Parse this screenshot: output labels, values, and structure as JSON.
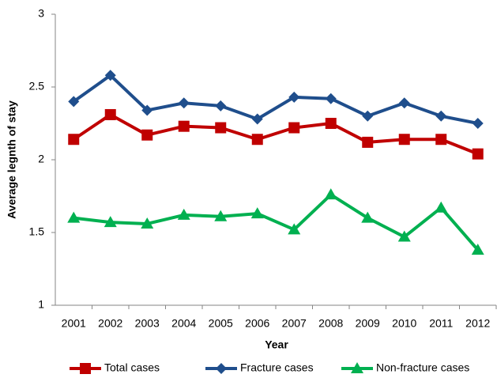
{
  "chart_data": {
    "type": "line",
    "x_label": "Year",
    "y_label": "Average legnth of stay",
    "categories": [
      "2001",
      "2002",
      "2003",
      "2004",
      "2005",
      "2006",
      "2007",
      "2008",
      "2009",
      "2010",
      "2011",
      "2012"
    ],
    "series": [
      {
        "name": "Total cases",
        "color": "#c00000",
        "marker": "square",
        "values": [
          2.14,
          2.31,
          2.17,
          2.23,
          2.22,
          2.14,
          2.22,
          2.25,
          2.12,
          2.14,
          2.14,
          2.04
        ]
      },
      {
        "name": "Fracture cases",
        "color": "#1f4e8c",
        "marker": "diamond",
        "values": [
          2.4,
          2.58,
          2.34,
          2.39,
          2.37,
          2.28,
          2.43,
          2.42,
          2.3,
          2.39,
          2.3,
          2.25
        ]
      },
      {
        "name": "Non-fracture cases",
        "color": "#00b050",
        "marker": "triangle",
        "values": [
          1.6,
          1.57,
          1.56,
          1.62,
          1.61,
          1.63,
          1.52,
          1.76,
          1.6,
          1.47,
          1.67,
          1.38
        ]
      }
    ],
    "ylim": [
      1,
      3
    ],
    "yticks": [
      1,
      1.5,
      2,
      2.5,
      3
    ],
    "grid": false,
    "legend": "bottom"
  }
}
